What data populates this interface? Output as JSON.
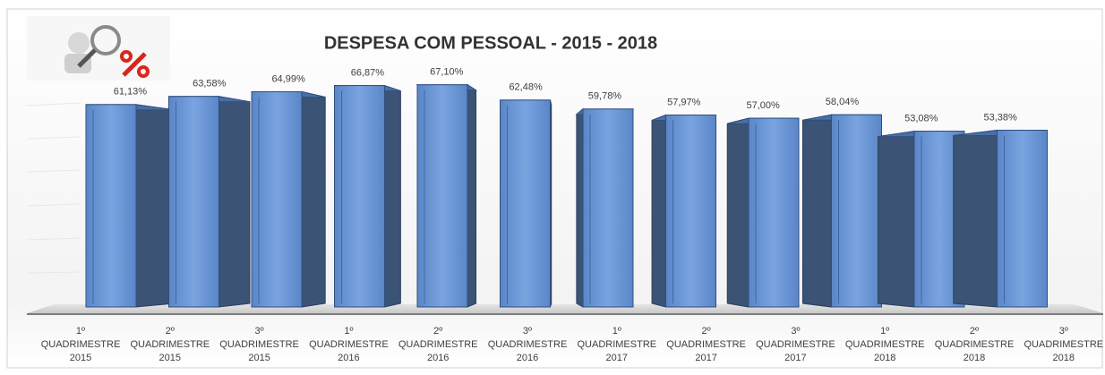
{
  "chart_data": {
    "type": "bar3d",
    "title": "DESPESA COM PESSOAL - 2015 - 2018",
    "categories": [
      [
        "1º",
        "QUADRIMESTRE",
        "2015"
      ],
      [
        "2º",
        "QUADRIMESTRE",
        "2015"
      ],
      [
        "3º",
        "QUADRIMESTRE",
        "2015"
      ],
      [
        "1º",
        "QUADRIMESTRE",
        "2016"
      ],
      [
        "2º",
        "QUADRIMESTRE",
        "2016"
      ],
      [
        "3º",
        "QUADRIMESTRE",
        "2016"
      ],
      [
        "1º",
        "QUADRIMESTRE",
        "2017"
      ],
      [
        "2º",
        "QUADRIMESTRE",
        "2017"
      ],
      [
        "3º",
        "QUADRIMESTRE",
        "2017"
      ],
      [
        "1º",
        "QUADRIMESTRE",
        "2018"
      ],
      [
        "2º",
        "QUADRIMESTRE",
        "2018"
      ],
      [
        "3º",
        "QUADRIMESTRE",
        "2018"
      ]
    ],
    "values": [
      61.13,
      63.58,
      64.99,
      66.87,
      67.1,
      62.48,
      59.78,
      57.97,
      57.0,
      58.04,
      53.08,
      53.38
    ],
    "value_labels": [
      "61,13%",
      "63,58%",
      "64,99%",
      "66,87%",
      "67,10%",
      "62,48%",
      "59,78%",
      "57,97%",
      "57,00%",
      "58,04%",
      "53,08%",
      "53,38%"
    ],
    "color": "#5b87c9",
    "ylim": [
      0,
      70
    ]
  }
}
